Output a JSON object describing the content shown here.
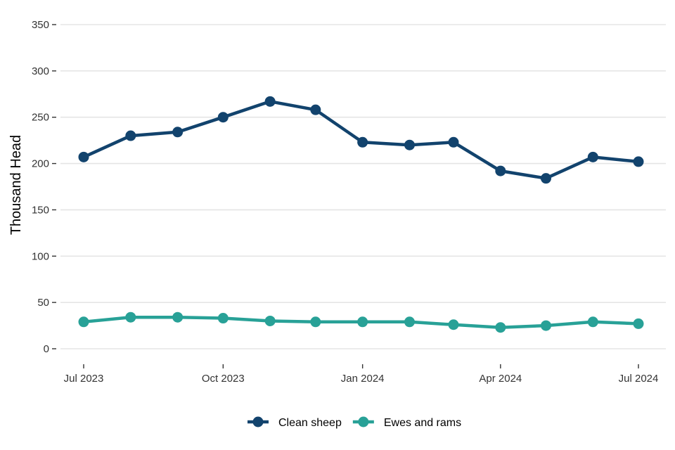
{
  "chart_data": {
    "type": "line",
    "ylabel": "Thousand Head",
    "ylim": [
      0,
      350
    ],
    "yticks": [
      0,
      50,
      100,
      150,
      200,
      250,
      300,
      350
    ],
    "xlim": [
      "2023-07-01",
      "2024-07-01"
    ],
    "xticks": [
      {
        "date": "2023-07-01",
        "label": "Jul 2023"
      },
      {
        "date": "2023-10-01",
        "label": "Oct 2023"
      },
      {
        "date": "2024-01-01",
        "label": "Jan 2024"
      },
      {
        "date": "2024-04-01",
        "label": "Apr 2024"
      },
      {
        "date": "2024-07-01",
        "label": "Jul 2024"
      }
    ],
    "x": [
      "2023-07-01",
      "2023-08-01",
      "2023-09-01",
      "2023-10-01",
      "2023-11-01",
      "2023-12-01",
      "2024-01-01",
      "2024-02-01",
      "2024-03-01",
      "2024-04-01",
      "2024-05-01",
      "2024-06-01",
      "2024-07-01"
    ],
    "series": [
      {
        "name": "Clean sheep",
        "color": "#12436d",
        "values": [
          207,
          230,
          234,
          250,
          267,
          258,
          223,
          220,
          223,
          192,
          184,
          207,
          202
        ]
      },
      {
        "name": "Ewes and rams",
        "color": "#28a197",
        "values": [
          29,
          34,
          34,
          33,
          30,
          29,
          29,
          29,
          26,
          23,
          25,
          29,
          27
        ]
      }
    ],
    "grid": true,
    "legend_position": "bottom"
  }
}
